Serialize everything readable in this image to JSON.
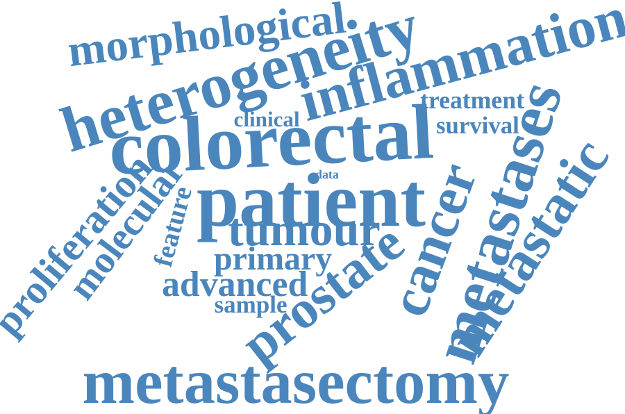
{
  "text_color": "#4A86BC",
  "background_color": "#FFFFFF",
  "words": [
    {
      "id": "morphological",
      "text": "morphological"
    },
    {
      "id": "heterogeneity",
      "text": "heterogeneity"
    },
    {
      "id": "inflammation",
      "text": "inflammation"
    },
    {
      "id": "treatment",
      "text": "treatment"
    },
    {
      "id": "clinical",
      "text": "clinical"
    },
    {
      "id": "survival",
      "text": "survival"
    },
    {
      "id": "colorectal",
      "text": "colorectal"
    },
    {
      "id": "metastases",
      "text": "metastases"
    },
    {
      "id": "data",
      "text": "data"
    },
    {
      "id": "patient",
      "text": "patient"
    },
    {
      "id": "cancer",
      "text": "cancer"
    },
    {
      "id": "metastatic",
      "text": "metastatic"
    },
    {
      "id": "proliferation",
      "text": "proliferation"
    },
    {
      "id": "molecular",
      "text": "molecular"
    },
    {
      "id": "feature",
      "text": "feature"
    },
    {
      "id": "tumour",
      "text": "tumour"
    },
    {
      "id": "primary",
      "text": "primary"
    },
    {
      "id": "prostate",
      "text": "prostate"
    },
    {
      "id": "advanced",
      "text": "advanced"
    },
    {
      "id": "sample",
      "text": "sample"
    },
    {
      "id": "metastasectomy",
      "text": "metastasectomy"
    }
  ]
}
